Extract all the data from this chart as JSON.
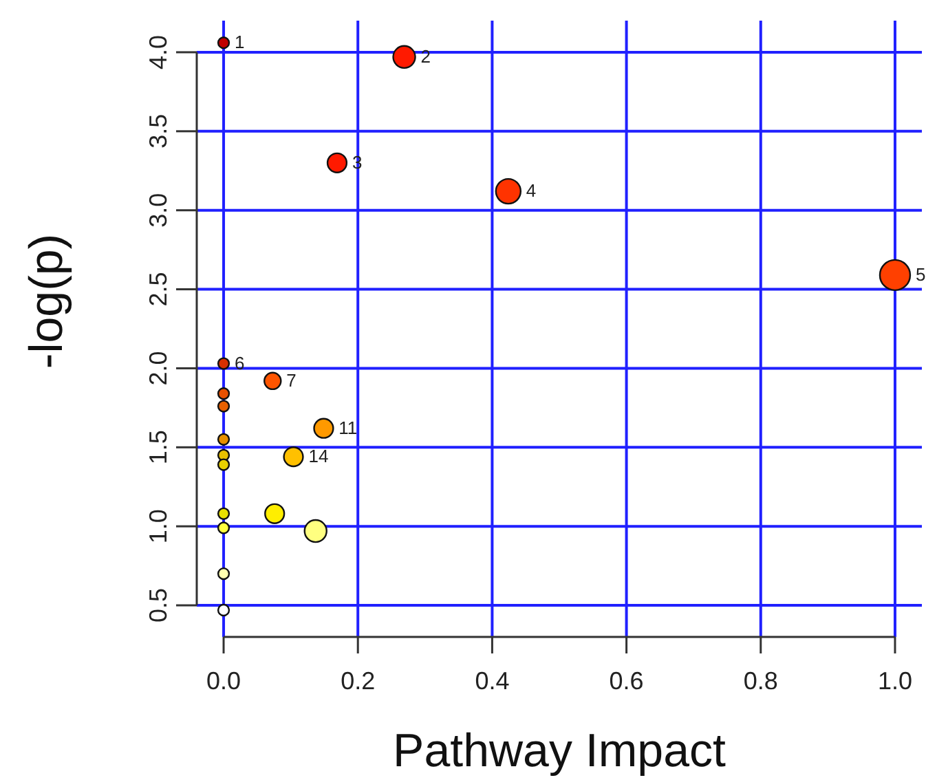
{
  "chart_data": {
    "type": "bubble",
    "xlabel": "Pathway Impact",
    "ylabel": "-log(p)",
    "xlim": [
      -0.04,
      1.04
    ],
    "ylim": [
      0.3,
      4.2
    ],
    "xticks": [
      {
        "value": 0,
        "label": "0.0"
      },
      0.2,
      0.4,
      0.6,
      0.8,
      {
        "value": 1,
        "label": "1.0"
      }
    ],
    "yticks": [
      0.5,
      {
        "value": 1,
        "label": "1.0"
      },
      1.5,
      {
        "value": 2,
        "label": "2.0"
      },
      2.5,
      {
        "value": 3,
        "label": "3.0"
      },
      3.5,
      {
        "value": 4,
        "label": "4.0"
      }
    ],
    "grid": true,
    "x": [
      0,
      0.269,
      0.169,
      0.424,
      1.0,
      0,
      0.073,
      0,
      0,
      0,
      0.149,
      0,
      0,
      0.104,
      0,
      0.076,
      0,
      0.137,
      0,
      0
    ],
    "values": [
      4.06,
      3.97,
      3.3,
      3.12,
      2.59,
      2.03,
      1.92,
      1.84,
      1.76,
      1.55,
      1.62,
      1.45,
      1.39,
      1.44,
      1.08,
      1.08,
      0.99,
      0.97,
      0.7,
      0.47
    ],
    "sizes": [
      0.13,
      0.53,
      0.4,
      0.67,
      1,
      0.13,
      0.3,
      0.13,
      0.13,
      0.13,
      0.4,
      0.13,
      0.13,
      0.4,
      0.13,
      0.4,
      0.13,
      0.53,
      0.13,
      0.13
    ],
    "colors": [
      "#c00000",
      "#ff1a00",
      "#ff1a00",
      "#ff3300",
      "#ff4000",
      "#d83000",
      "#ff5500",
      "#e85000",
      "#e86000",
      "#e89000",
      "#ff9900",
      "#e8c000",
      "#e8d000",
      "#ffc000",
      "#e8e000",
      "#ffee00",
      "#ffff40",
      "#ffff80",
      "#ffffb0",
      "#ffffff"
    ],
    "annotations": [
      {
        "text": "1",
        "x": 0,
        "y": 4.06
      },
      {
        "text": "2",
        "x": 0.269,
        "y": 3.97
      },
      {
        "text": "3",
        "x": 0.169,
        "y": 3.3
      },
      {
        "text": "4",
        "x": 0.424,
        "y": 3.12
      },
      {
        "text": "5",
        "x": 1.0,
        "y": 2.59
      },
      {
        "text": "6",
        "x": 0,
        "y": 2.03
      },
      {
        "text": "7",
        "x": 0.073,
        "y": 1.92
      },
      {
        "text": "11",
        "x": 0.149,
        "y": 1.62
      },
      {
        "text": "14",
        "x": 0.104,
        "y": 1.44
      }
    ]
  }
}
